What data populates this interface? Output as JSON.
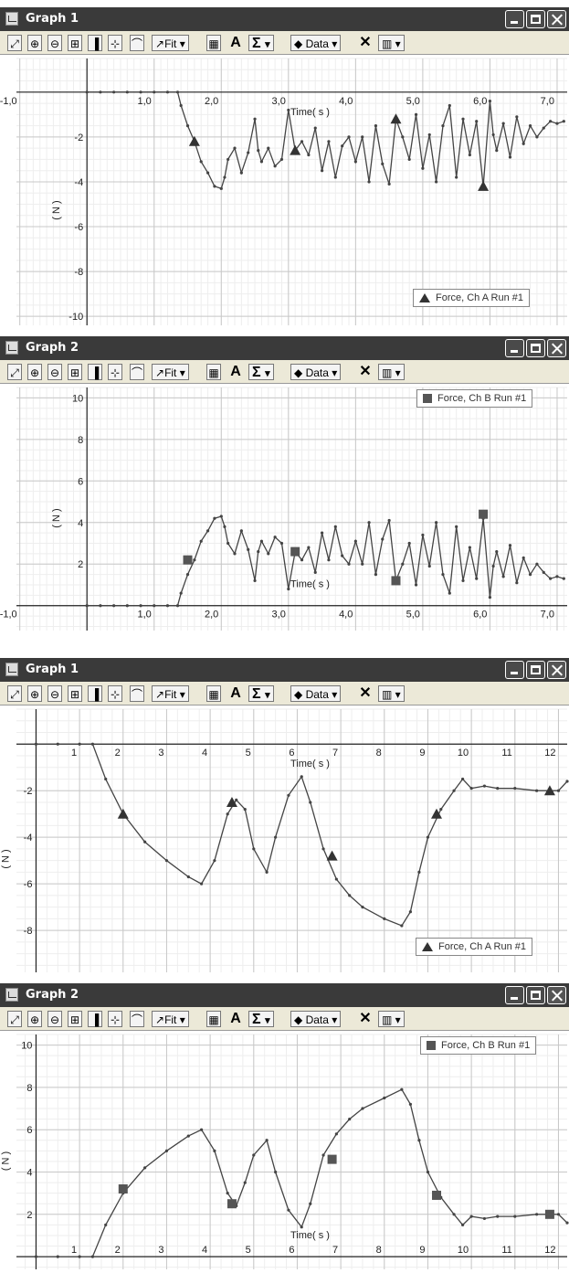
{
  "windows": [
    {
      "title": "Graph 1",
      "toolbar": {
        "fit": "Fit",
        "data": "Data",
        "a": "A",
        "sigma": "Σ"
      },
      "legend": "Force, Ch A Run #1",
      "marker": "triangle",
      "chart_data": {
        "type": "line",
        "title": "",
        "xlabel": "Time( s )",
        "ylabel": "( N )",
        "xlim": [
          -1.05,
          7.15
        ],
        "ylim": [
          -10.4,
          1.5
        ],
        "x_ticks": [
          -1.0,
          1.0,
          2.0,
          3.0,
          4.0,
          5.0,
          6.0,
          7.0
        ],
        "x_tick_labels": [
          "-1,0",
          "1,0",
          "2,0",
          "3,0",
          "4,0",
          "5,0",
          "6,0",
          "7,0"
        ],
        "y_ticks": [
          -2,
          -4,
          -6,
          -8,
          -10
        ],
        "y_tick_labels": [
          "-2",
          "-4",
          "-6",
          "-8",
          "-10"
        ],
        "series": [
          {
            "name": "Force, Ch A Run #1",
            "x": [
              0.0,
              0.2,
              0.4,
              0.6,
              0.8,
              1.0,
              1.2,
              1.35,
              1.4,
              1.5,
              1.6,
              1.7,
              1.8,
              1.9,
              2.0,
              2.05,
              2.1,
              2.2,
              2.3,
              2.4,
              2.5,
              2.55,
              2.6,
              2.7,
              2.8,
              2.9,
              3.0,
              3.1,
              3.2,
              3.3,
              3.4,
              3.5,
              3.6,
              3.7,
              3.8,
              3.9,
              4.0,
              4.1,
              4.2,
              4.3,
              4.4,
              4.5,
              4.6,
              4.7,
              4.8,
              4.9,
              5.0,
              5.1,
              5.2,
              5.3,
              5.4,
              5.5,
              5.6,
              5.7,
              5.8,
              5.9,
              6.0,
              6.05,
              6.1,
              6.2,
              6.3,
              6.4,
              6.5,
              6.6,
              6.7,
              6.8,
              6.9,
              7.0,
              7.1
            ],
            "y": [
              0.0,
              0.0,
              0.0,
              0.0,
              0.0,
              0.0,
              0.0,
              0.0,
              -0.6,
              -1.5,
              -2.2,
              -3.1,
              -3.6,
              -4.2,
              -4.3,
              -3.8,
              -3.0,
              -2.5,
              -3.6,
              -2.7,
              -1.2,
              -2.6,
              -3.1,
              -2.5,
              -3.3,
              -3.0,
              -0.8,
              -2.6,
              -2.2,
              -2.8,
              -1.6,
              -3.5,
              -2.2,
              -3.8,
              -2.4,
              -2.0,
              -3.1,
              -2.0,
              -4.0,
              -1.5,
              -3.2,
              -4.1,
              -1.2,
              -2.0,
              -3.0,
              -1.0,
              -3.4,
              -1.9,
              -4.0,
              -1.5,
              -0.6,
              -3.8,
              -1.2,
              -2.8,
              -1.3,
              -4.2,
              -0.4,
              -1.9,
              -2.6,
              -1.4,
              -2.9,
              -1.1,
              -2.3,
              -1.5,
              -2.0,
              -1.6,
              -1.3,
              -1.4,
              -1.3
            ],
            "markers": [
              [
                1.6,
                -2.2
              ],
              [
                3.1,
                -2.6
              ],
              [
                4.6,
                -1.2
              ],
              [
                5.9,
                -4.2
              ]
            ]
          }
        ]
      }
    },
    {
      "title": "Graph 2",
      "toolbar": {
        "fit": "Fit",
        "data": "Data",
        "a": "A",
        "sigma": "Σ"
      },
      "legend": "Force, Ch B Run #1",
      "marker": "square",
      "chart_data": {
        "type": "line",
        "title": "",
        "xlabel": "Time( s )",
        "ylabel": "( N )",
        "xlim": [
          -1.05,
          7.15
        ],
        "ylim": [
          -1.2,
          10.5
        ],
        "x_ticks": [
          -1.0,
          1.0,
          2.0,
          3.0,
          4.0,
          5.0,
          6.0,
          7.0
        ],
        "x_tick_labels": [
          "-1,0",
          "1,0",
          "2,0",
          "3,0",
          "4,0",
          "5,0",
          "6,0",
          "7,0"
        ],
        "y_ticks": [
          2,
          4,
          6,
          8,
          10
        ],
        "y_tick_labels": [
          "2",
          "4",
          "6",
          "8",
          "10"
        ],
        "series": [
          {
            "name": "Force, Ch B Run #1",
            "x": [
              0.0,
              0.2,
              0.4,
              0.6,
              0.8,
              1.0,
              1.2,
              1.35,
              1.4,
              1.5,
              1.6,
              1.7,
              1.8,
              1.9,
              2.0,
              2.05,
              2.1,
              2.2,
              2.3,
              2.4,
              2.5,
              2.55,
              2.6,
              2.7,
              2.8,
              2.9,
              3.0,
              3.1,
              3.2,
              3.3,
              3.4,
              3.5,
              3.6,
              3.7,
              3.8,
              3.9,
              4.0,
              4.1,
              4.2,
              4.3,
              4.4,
              4.5,
              4.6,
              4.7,
              4.8,
              4.9,
              5.0,
              5.1,
              5.2,
              5.3,
              5.4,
              5.5,
              5.6,
              5.7,
              5.8,
              5.9,
              6.0,
              6.05,
              6.1,
              6.2,
              6.3,
              6.4,
              6.5,
              6.6,
              6.7,
              6.8,
              6.9,
              7.0,
              7.1
            ],
            "y": [
              0.0,
              0.0,
              0.0,
              0.0,
              0.0,
              0.0,
              0.0,
              0.0,
              0.6,
              1.5,
              2.2,
              3.1,
              3.6,
              4.2,
              4.3,
              3.8,
              3.0,
              2.5,
              3.6,
              2.7,
              1.2,
              2.6,
              3.1,
              2.5,
              3.3,
              3.0,
              0.8,
              2.6,
              2.2,
              2.8,
              1.6,
              3.5,
              2.2,
              3.8,
              2.4,
              2.0,
              3.1,
              2.0,
              4.0,
              1.5,
              3.2,
              4.1,
              1.2,
              2.0,
              3.0,
              1.0,
              3.4,
              1.9,
              4.0,
              1.5,
              0.6,
              3.8,
              1.2,
              2.8,
              1.3,
              4.2,
              0.4,
              1.9,
              2.6,
              1.4,
              2.9,
              1.1,
              2.3,
              1.5,
              2.0,
              1.6,
              1.3,
              1.4,
              1.3
            ],
            "markers": [
              [
                1.5,
                2.2
              ],
              [
                3.1,
                2.6
              ],
              [
                4.6,
                1.2
              ],
              [
                5.9,
                4.4
              ]
            ]
          }
        ]
      }
    },
    {
      "title": "Graph 1",
      "toolbar": {
        "fit": "Fit",
        "data": "Data",
        "a": "A",
        "sigma": "Σ"
      },
      "legend": "Force, Ch A Run #1",
      "marker": "triangle",
      "chart_data": {
        "type": "line",
        "title": "",
        "xlabel": "Time( s )",
        "ylabel": "( N )",
        "xlim": [
          -0.45,
          12.2
        ],
        "ylim": [
          -9.8,
          1.5
        ],
        "x_ticks": [
          1,
          2,
          3,
          4,
          5,
          6,
          7,
          8,
          9,
          10,
          11,
          12
        ],
        "x_tick_labels": [
          "1",
          "2",
          "3",
          "4",
          "5",
          "6",
          "7",
          "8",
          "9",
          "10",
          "11",
          "12"
        ],
        "y_ticks": [
          -2,
          -4,
          -6,
          -8
        ],
        "y_tick_labels": [
          "-2",
          "-4",
          "-6",
          "-8"
        ],
        "series": [
          {
            "name": "Force, Ch A Run #1",
            "x": [
              0.0,
              0.5,
              1.0,
              1.3,
              1.6,
              2.0,
              2.5,
              3.0,
              3.5,
              3.8,
              4.1,
              4.4,
              4.6,
              4.8,
              5.0,
              5.3,
              5.5,
              5.8,
              6.1,
              6.3,
              6.6,
              6.9,
              7.2,
              7.5,
              8.0,
              8.4,
              8.6,
              8.8,
              9.0,
              9.3,
              9.6,
              9.8,
              10.0,
              10.3,
              10.6,
              11.0,
              11.5,
              12.0,
              12.2
            ],
            "y": [
              0.0,
              0.0,
              0.0,
              0.0,
              -1.5,
              -3.0,
              -4.2,
              -5.0,
              -5.7,
              -6.0,
              -5.0,
              -3.0,
              -2.4,
              -2.8,
              -4.5,
              -5.5,
              -4.0,
              -2.2,
              -1.4,
              -2.5,
              -4.5,
              -5.8,
              -6.5,
              -7.0,
              -7.5,
              -7.8,
              -7.2,
              -5.5,
              -4.0,
              -2.8,
              -2.0,
              -1.5,
              -1.9,
              -1.8,
              -1.9,
              -1.9,
              -2.0,
              -2.0,
              -1.6
            ],
            "markers": [
              [
                2.0,
                -3.0
              ],
              [
                4.5,
                -2.5
              ],
              [
                6.8,
                -4.8
              ],
              [
                9.2,
                -3.0
              ],
              [
                11.8,
                -2.0
              ]
            ]
          }
        ]
      }
    },
    {
      "title": "Graph 2",
      "toolbar": {
        "fit": "Fit",
        "data": "Data",
        "a": "A",
        "sigma": "Σ"
      },
      "legend": "Force, Ch B Run #1",
      "marker": "square",
      "chart_data": {
        "type": "line",
        "title": "",
        "xlabel": "Time( s )",
        "ylabel": "( N )",
        "xlim": [
          -0.45,
          12.2
        ],
        "ylim": [
          -0.6,
          10.5
        ],
        "x_ticks": [
          1,
          2,
          3,
          4,
          5,
          6,
          7,
          8,
          9,
          10,
          11,
          12
        ],
        "x_tick_labels": [
          "1",
          "2",
          "3",
          "4",
          "5",
          "6",
          "7",
          "8",
          "9",
          "10",
          "11",
          "12"
        ],
        "y_ticks": [
          2,
          4,
          6,
          8,
          10
        ],
        "y_tick_labels": [
          "2",
          "4",
          "6",
          "8",
          "10"
        ],
        "series": [
          {
            "name": "Force, Ch B Run #1",
            "x": [
              0.0,
              0.5,
              1.0,
              1.3,
              1.6,
              2.0,
              2.5,
              3.0,
              3.5,
              3.8,
              4.1,
              4.4,
              4.6,
              4.8,
              5.0,
              5.3,
              5.5,
              5.8,
              6.1,
              6.3,
              6.6,
              6.9,
              7.2,
              7.5,
              8.0,
              8.4,
              8.6,
              8.8,
              9.0,
              9.3,
              9.6,
              9.8,
              10.0,
              10.3,
              10.6,
              11.0,
              11.5,
              12.0,
              12.2
            ],
            "y": [
              0.0,
              0.0,
              0.0,
              0.0,
              1.5,
              3.0,
              4.2,
              5.0,
              5.7,
              6.0,
              5.0,
              3.0,
              2.4,
              3.5,
              4.8,
              5.5,
              4.0,
              2.2,
              1.4,
              2.5,
              4.8,
              5.8,
              6.5,
              7.0,
              7.5,
              7.9,
              7.2,
              5.5,
              4.0,
              2.8,
              2.0,
              1.5,
              1.9,
              1.8,
              1.9,
              1.9,
              2.0,
              2.0,
              1.6
            ],
            "markers": [
              [
                2.0,
                3.2
              ],
              [
                4.5,
                2.5
              ],
              [
                6.8,
                4.6
              ],
              [
                9.2,
                2.9
              ],
              [
                11.8,
                2.0
              ]
            ]
          }
        ]
      }
    }
  ]
}
